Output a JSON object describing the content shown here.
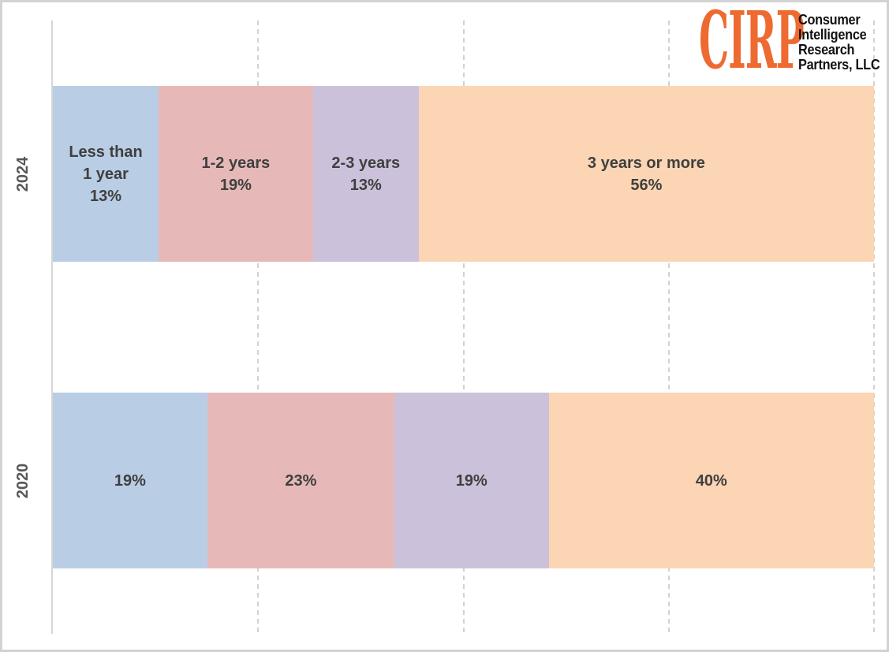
{
  "logo": {
    "acronym": "CIRP",
    "name_lines": [
      "Consumer",
      "Intelligence",
      "Research",
      "Partners, LLC"
    ],
    "accent_color": "#ee6a31"
  },
  "colors": {
    "segment_blue": "#b9cde4",
    "segment_pink": "#e6b9b8",
    "segment_purple": "#ccc1da",
    "segment_peach": "#fcd5b4",
    "bar_label_text": "#3f3f3f",
    "axis_label_text": "#575757",
    "gridline": "#d2d2d2",
    "axis_line": "#d6d6d6",
    "border": "#d2d2d2"
  },
  "chart_data": {
    "type": "bar",
    "variant": "horizontal-stacked",
    "units": "percent",
    "xlim": [
      0,
      100
    ],
    "grid": "vertical-dashed",
    "gridlines_pct": [
      25,
      50,
      75,
      100
    ],
    "categories": [
      "2024",
      "2020"
    ],
    "series": [
      {
        "name": "Less than 1 year",
        "color": "#b9cde4",
        "values": [
          13,
          19
        ]
      },
      {
        "name": "1-2 years",
        "color": "#e6b9b8",
        "values": [
          19,
          23
        ]
      },
      {
        "name": "2-3 years",
        "color": "#ccc1da",
        "values": [
          13,
          19
        ]
      },
      {
        "name": "3 years or more",
        "color": "#fcd5b4",
        "values": [
          56,
          40
        ]
      }
    ],
    "bars": [
      {
        "category": "2024",
        "segments": [
          {
            "name": "Less than 1 year",
            "value": 13,
            "color": "#b9cde4",
            "label_lines": [
              "Less than",
              "1 year",
              "13%"
            ]
          },
          {
            "name": "1-2 years",
            "value": 19,
            "color": "#e6b9b8",
            "label_lines": [
              "1-2 years",
              "19%"
            ]
          },
          {
            "name": "2-3 years",
            "value": 13,
            "color": "#ccc1da",
            "label_lines": [
              "2-3 years",
              "13%"
            ]
          },
          {
            "name": "3 years or more",
            "value": 56,
            "color": "#fcd5b4",
            "label_lines": [
              "3 years or more",
              "56%"
            ]
          }
        ]
      },
      {
        "category": "2020",
        "segments": [
          {
            "name": "Less than 1 year",
            "value": 19,
            "color": "#b9cde4",
            "label_lines": [
              "19%"
            ]
          },
          {
            "name": "1-2 years",
            "value": 23,
            "color": "#e6b9b8",
            "label_lines": [
              "23%"
            ]
          },
          {
            "name": "2-3 years",
            "value": 19,
            "color": "#ccc1da",
            "label_lines": [
              "19%"
            ]
          },
          {
            "name": "3 years or more",
            "value": 40,
            "color": "#fcd5b4",
            "label_lines": [
              "40%"
            ]
          }
        ]
      }
    ]
  }
}
